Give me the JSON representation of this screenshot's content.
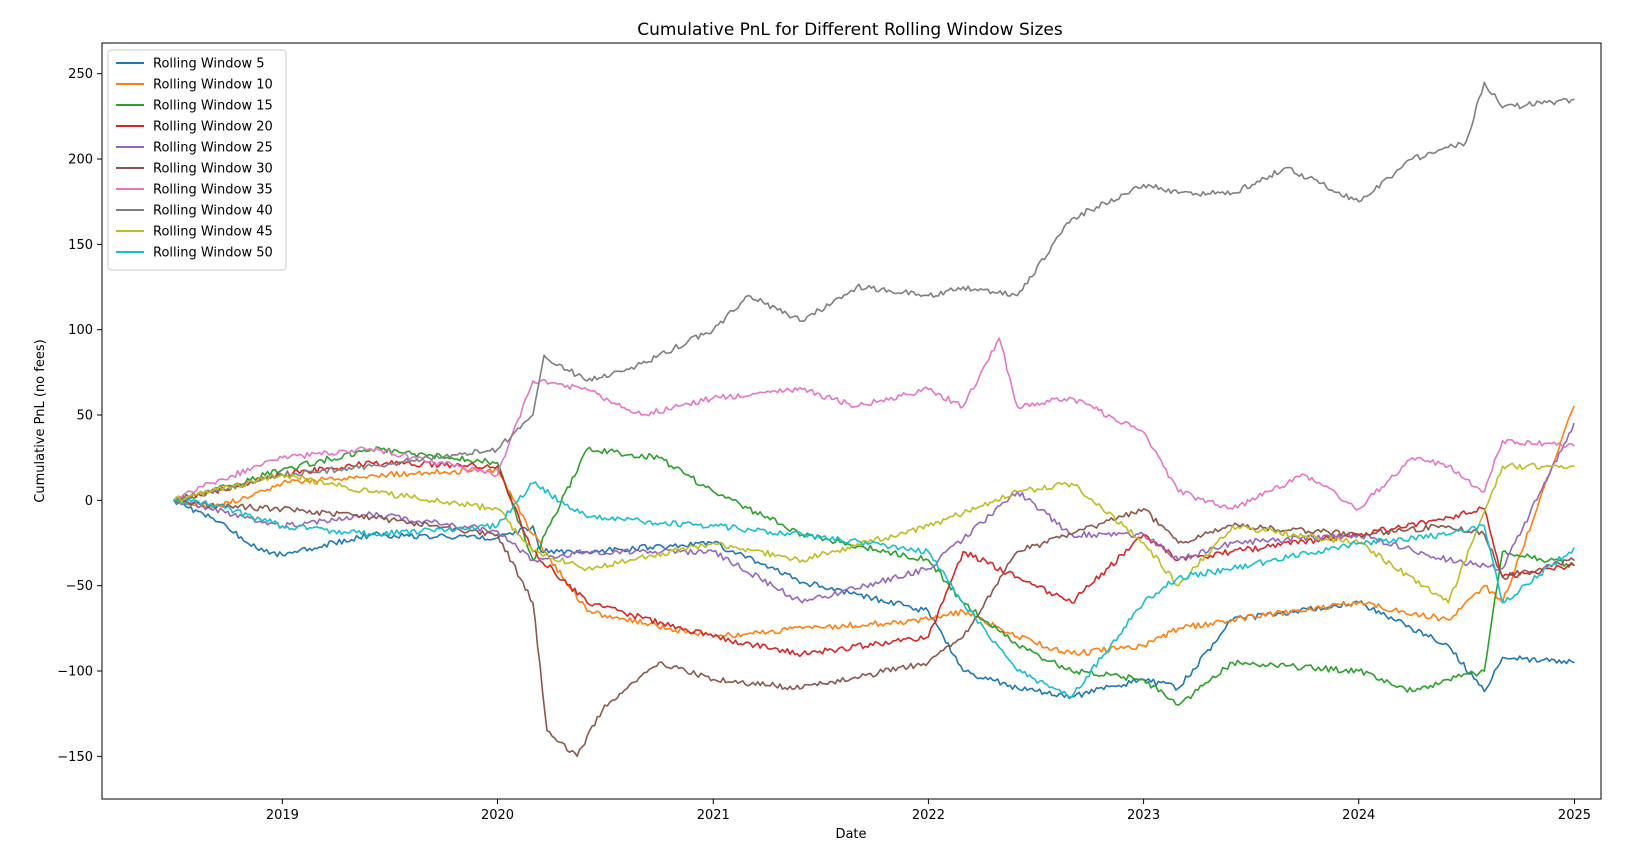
{
  "chart_data": {
    "type": "line",
    "title": "Cumulative PnL for Different Rolling Window Sizes",
    "xlabel": "Date",
    "ylabel": "Cumulative PnL (no fees)",
    "xlim": [
      "2018-03-01",
      "2025-02-15"
    ],
    "ylim": [
      -175,
      268
    ],
    "x_ticks": [
      "2019-01-01",
      "2020-01-01",
      "2021-01-01",
      "2022-01-01",
      "2023-01-01",
      "2024-01-01",
      "2025-01-01"
    ],
    "x_tick_labels": [
      "2019",
      "2020",
      "2021",
      "2022",
      "2023",
      "2024",
      "2025"
    ],
    "y_ticks": [
      -150,
      -100,
      -50,
      0,
      50,
      100,
      150,
      200,
      250
    ],
    "y_tick_labels": [
      "−150",
      "−100",
      "−50",
      "0",
      "50",
      "100",
      "150",
      "200",
      "250"
    ],
    "grid": false,
    "legend_position": "top-left",
    "series": [
      {
        "name": "Rolling Window 5",
        "color": "#1f77b4",
        "x": [
          "2018-07-01",
          "2018-09-01",
          "2018-12-01",
          "2019-01-01",
          "2019-06-01",
          "2020-01-01",
          "2020-03-01",
          "2020-03-15",
          "2020-06-01",
          "2021-01-01",
          "2021-06-01",
          "2021-09-01",
          "2022-01-01",
          "2022-03-01",
          "2022-06-01",
          "2022-09-01",
          "2023-01-01",
          "2023-03-01",
          "2023-06-01",
          "2024-01-01",
          "2024-06-01",
          "2024-08-01",
          "2024-09-01",
          "2024-12-31"
        ],
        "y": [
          0,
          -10,
          -30,
          -32,
          -20,
          -22,
          -15,
          -30,
          -30,
          -25,
          -48,
          -55,
          -65,
          -100,
          -110,
          -115,
          -105,
          -110,
          -70,
          -60,
          -85,
          -112,
          -92,
          -95
        ]
      },
      {
        "name": "Rolling Window 10",
        "color": "#ff7f0e",
        "x": [
          "2018-07-01",
          "2018-09-01",
          "2019-01-01",
          "2019-06-01",
          "2020-01-01",
          "2020-03-01",
          "2020-06-01",
          "2021-01-01",
          "2021-06-01",
          "2022-01-01",
          "2022-03-01",
          "2022-06-01",
          "2022-09-01",
          "2023-01-01",
          "2023-03-01",
          "2023-06-01",
          "2024-01-01",
          "2024-06-01",
          "2024-08-01",
          "2024-09-01",
          "2024-12-31"
        ],
        "y": [
          0,
          -5,
          10,
          15,
          18,
          -20,
          -65,
          -80,
          -75,
          -70,
          -65,
          -80,
          -90,
          -85,
          -75,
          -70,
          -60,
          -70,
          -50,
          -60,
          55
        ]
      },
      {
        "name": "Rolling Window 15",
        "color": "#2ca02c",
        "x": [
          "2018-07-01",
          "2018-09-01",
          "2019-01-01",
          "2019-06-01",
          "2020-01-01",
          "2020-03-01",
          "2020-06-01",
          "2020-10-01",
          "2021-01-01",
          "2021-06-01",
          "2022-01-01",
          "2022-03-01",
          "2022-06-01",
          "2022-09-01",
          "2023-01-01",
          "2023-03-01",
          "2023-06-01",
          "2024-01-01",
          "2024-04-01",
          "2024-06-01",
          "2024-08-01",
          "2024-09-01",
          "2024-12-31"
        ],
        "y": [
          0,
          5,
          18,
          30,
          22,
          -35,
          30,
          25,
          5,
          -20,
          -35,
          -60,
          -85,
          -100,
          -105,
          -120,
          -95,
          -100,
          -112,
          -105,
          -100,
          -30,
          -38
        ]
      },
      {
        "name": "Rolling Window 20",
        "color": "#d62728",
        "x": [
          "2018-07-01",
          "2018-09-01",
          "2019-01-01",
          "2019-06-01",
          "2020-01-01",
          "2020-03-01",
          "2020-06-01",
          "2021-01-01",
          "2021-06-01",
          "2022-01-01",
          "2022-03-01",
          "2022-06-01",
          "2022-09-01",
          "2023-01-01",
          "2023-03-01",
          "2023-06-01",
          "2024-01-01",
          "2024-06-01",
          "2024-08-01",
          "2024-09-01",
          "2024-12-31"
        ],
        "y": [
          0,
          5,
          15,
          22,
          20,
          -30,
          -60,
          -80,
          -90,
          -80,
          -30,
          -45,
          -60,
          -20,
          -35,
          -30,
          -20,
          -10,
          -5,
          -45,
          -38
        ]
      },
      {
        "name": "Rolling Window 25",
        "color": "#9467bd",
        "x": [
          "2018-07-01",
          "2018-09-01",
          "2019-01-01",
          "2019-06-01",
          "2020-01-01",
          "2020-03-01",
          "2020-06-01",
          "2021-01-01",
          "2021-06-01",
          "2022-01-01",
          "2022-06-01",
          "2022-09-01",
          "2023-01-01",
          "2023-03-01",
          "2023-06-01",
          "2024-01-01",
          "2024-06-01",
          "2024-09-01",
          "2024-12-31"
        ],
        "y": [
          0,
          -5,
          -15,
          -8,
          -18,
          -35,
          -30,
          -30,
          -60,
          -40,
          5,
          -20,
          -20,
          -35,
          -25,
          -20,
          -35,
          -40,
          45
        ]
      },
      {
        "name": "Rolling Window 30",
        "color": "#8c564b",
        "x": [
          "2018-07-01",
          "2018-09-01",
          "2019-01-01",
          "2019-06-01",
          "2020-01-01",
          "2020-03-01",
          "2020-03-25",
          "2020-05-15",
          "2020-07-01",
          "2020-10-01",
          "2021-01-01",
          "2021-06-01",
          "2022-01-01",
          "2022-03-01",
          "2022-06-01",
          "2022-09-01",
          "2023-01-01",
          "2023-03-01",
          "2023-06-01",
          "2024-01-01",
          "2024-06-01",
          "2024-08-01",
          "2024-09-01",
          "2024-12-31"
        ],
        "y": [
          0,
          -3,
          -5,
          -10,
          -20,
          -60,
          -135,
          -150,
          -120,
          -95,
          -105,
          -110,
          -95,
          -80,
          -30,
          -20,
          -5,
          -25,
          -15,
          -20,
          -15,
          -20,
          -45,
          -35
        ]
      },
      {
        "name": "Rolling Window 35",
        "color": "#e377c2",
        "x": [
          "2018-07-01",
          "2018-09-01",
          "2019-01-01",
          "2019-06-01",
          "2020-01-01",
          "2020-03-01",
          "2020-06-01",
          "2020-09-01",
          "2021-01-01",
          "2021-06-01",
          "2021-09-01",
          "2022-01-01",
          "2022-03-01",
          "2022-05-01",
          "2022-06-01",
          "2022-09-01",
          "2023-01-01",
          "2023-03-01",
          "2023-06-01",
          "2023-10-01",
          "2024-01-01",
          "2024-04-01",
          "2024-06-01",
          "2024-08-01",
          "2024-09-01",
          "2024-12-31"
        ],
        "y": [
          0,
          10,
          25,
          30,
          15,
          70,
          65,
          50,
          60,
          65,
          55,
          65,
          55,
          95,
          55,
          60,
          40,
          5,
          -5,
          15,
          -5,
          25,
          20,
          5,
          35,
          32
        ]
      },
      {
        "name": "Rolling Window 40",
        "color": "#7f7f7f",
        "x": [
          "2018-07-01",
          "2018-09-01",
          "2019-01-01",
          "2019-06-01",
          "2020-01-01",
          "2020-03-01",
          "2020-03-20",
          "2020-06-01",
          "2020-09-01",
          "2021-01-01",
          "2021-03-01",
          "2021-06-01",
          "2021-09-01",
          "2022-01-01",
          "2022-03-01",
          "2022-06-01",
          "2022-09-01",
          "2023-01-01",
          "2023-03-01",
          "2023-06-01",
          "2023-09-01",
          "2024-01-01",
          "2024-04-01",
          "2024-07-01",
          "2024-08-01",
          "2024-09-01",
          "2024-12-31"
        ],
        "y": [
          0,
          5,
          15,
          20,
          30,
          50,
          85,
          70,
          80,
          100,
          120,
          105,
          125,
          120,
          125,
          120,
          165,
          185,
          180,
          180,
          195,
          175,
          200,
          210,
          245,
          230,
          235
        ]
      },
      {
        "name": "Rolling Window 45",
        "color": "#bcbd22",
        "x": [
          "2018-07-01",
          "2018-09-01",
          "2019-01-01",
          "2019-06-01",
          "2020-01-01",
          "2020-03-01",
          "2020-06-01",
          "2021-01-01",
          "2021-06-01",
          "2022-01-01",
          "2022-06-01",
          "2022-09-01",
          "2023-01-01",
          "2023-03-01",
          "2023-06-01",
          "2024-01-01",
          "2024-06-01",
          "2024-09-01",
          "2024-12-31"
        ],
        "y": [
          0,
          5,
          15,
          5,
          -5,
          -30,
          -40,
          -25,
          -35,
          -15,
          5,
          10,
          -25,
          -50,
          -15,
          -25,
          -60,
          20,
          20
        ]
      },
      {
        "name": "Rolling Window 50",
        "color": "#17becf",
        "x": [
          "2018-07-01",
          "2018-09-01",
          "2019-01-01",
          "2019-06-01",
          "2020-01-01",
          "2020-03-01",
          "2020-06-01",
          "2021-01-01",
          "2021-06-01",
          "2022-01-01",
          "2022-03-01",
          "2022-06-01",
          "2022-09-01",
          "2023-01-01",
          "2023-03-01",
          "2023-06-01",
          "2024-01-01",
          "2024-06-01",
          "2024-08-01",
          "2024-09-01",
          "2024-12-31"
        ],
        "y": [
          0,
          -2,
          -15,
          -20,
          -15,
          10,
          -10,
          -15,
          -20,
          -30,
          -60,
          -100,
          -115,
          -60,
          -45,
          -40,
          -25,
          -20,
          -15,
          -60,
          -28
        ]
      }
    ]
  }
}
